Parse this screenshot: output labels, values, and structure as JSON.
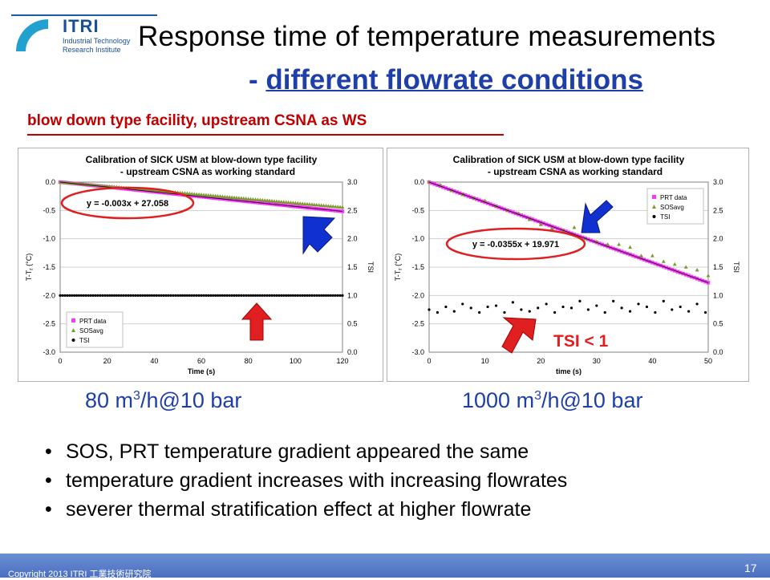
{
  "header": {
    "logo_text": "ITRI",
    "logo_sub1": "Industrial Technology",
    "logo_sub2": "Research Institute",
    "title_line1": "Response time of temperature measurements",
    "title_line2_prefix": "- ",
    "title_line2": "different flowrate conditions",
    "subtitle": "blow down type facility, upstream CSNA as WS"
  },
  "labels": {
    "flow1_pre": "80 m",
    "flow1_sup": "3",
    "flow1_post": "/h@10 bar",
    "flow2_pre": "1000 m",
    "flow2_sup": "3",
    "flow2_post": "/h@10 bar",
    "tsi_note": "TSI < 1"
  },
  "bullets": [
    "SOS, PRT  temperature gradient appeared the same",
    "temperature gradient increases with increasing flowrates",
    "severer thermal stratification effect at higher flowrate"
  ],
  "footer": {
    "copyright": "Copyright 2013 ITRI  工業技術研究院",
    "page": "17"
  },
  "colors": {
    "prt": "#ff33ff",
    "sos": "#7a9a2a",
    "tsi": "#000000",
    "trend": "#000000",
    "ellipse": "#e02020",
    "arrow_blue": "#1030d0",
    "arrow_red": "#e02020"
  },
  "chart_data": [
    {
      "type": "scatter",
      "title": "Calibration of SICK USM at blow-down type facility",
      "subtitle": "- upstream CSNA as working standard",
      "xlabel": "Time (s)",
      "ylabel": "T-T",
      "ylabel_sub": "r",
      "ylabel_unit": "(°C)",
      "y2label": "TSI",
      "xlim": [
        0,
        120
      ],
      "ylim": [
        -3.0,
        0.0
      ],
      "y2lim": [
        0.0,
        3.0
      ],
      "xticks": [
        "0",
        "20",
        "40",
        "60",
        "80",
        "100",
        "120"
      ],
      "yticks": [
        "0.0",
        "-0.5",
        "-1.0",
        "-1.5",
        "-2.0",
        "-2.5",
        "-3.0"
      ],
      "y2ticks": [
        "3.0",
        "2.5",
        "2.0",
        "1.5",
        "1.0",
        "0.5",
        "0.0"
      ],
      "equation": "y = -0.003x + 27.058",
      "legend_position": "bottom-left",
      "legend": [
        "PRT data",
        "SOSavg",
        "TSI"
      ],
      "series": [
        {
          "name": "PRT data",
          "marker": "square",
          "slope": -0.0043,
          "intercept": 0.0,
          "x_from": 0,
          "x_to": 120,
          "step": 1
        },
        {
          "name": "SOSavg",
          "marker": "triangle",
          "slope": -0.0037,
          "intercept": 0.0,
          "x_from": 0,
          "x_to": 120,
          "step": 1
        },
        {
          "name": "TSI",
          "marker": "circle",
          "axis": "y2",
          "constant": 1.0,
          "x_from": 0,
          "x_to": 120,
          "step": 1
        }
      ]
    },
    {
      "type": "scatter",
      "title": "Calibration of SICK USM at blow-down type facility",
      "subtitle": "- upstream CSNA as working standard",
      "xlabel": "time (s)",
      "ylabel": "T-T",
      "ylabel_sub": "r",
      "ylabel_unit": "(°C)",
      "y2label": "TSI",
      "xlim": [
        0,
        50
      ],
      "ylim": [
        -3.0,
        0.0
      ],
      "y2lim": [
        0.0,
        3.0
      ],
      "xticks": [
        "0",
        "10",
        "20",
        "30",
        "40",
        "50"
      ],
      "yticks": [
        "0.0",
        "-0.5",
        "-1.0",
        "-1.5",
        "-2.0",
        "-2.5",
        "-3.0"
      ],
      "y2ticks": [
        "3.0",
        "2.5",
        "2.0",
        "1.5",
        "1.0",
        "0.5",
        "0.0"
      ],
      "equation": "y = -0.0355x + 19.971",
      "legend_position": "top-right",
      "legend": [
        "PRT data",
        "SOSavg",
        "TSI"
      ],
      "series": [
        {
          "name": "PRT data",
          "marker": "square",
          "slope": -0.0355,
          "intercept": 0.0,
          "x_from": 0,
          "x_to": 50,
          "step": 0.5
        },
        {
          "name": "SOSavg",
          "marker": "triangle",
          "x": [
            0,
            2,
            4,
            6,
            8,
            10,
            12,
            14,
            16,
            18,
            20,
            22,
            24,
            26,
            28,
            30,
            32,
            34,
            36,
            38,
            40,
            42,
            44,
            46,
            48,
            50
          ],
          "values": [
            0.0,
            -0.05,
            -0.15,
            -0.22,
            -0.28,
            -0.33,
            -0.42,
            -0.5,
            -0.55,
            -0.66,
            -0.75,
            -0.82,
            -0.85,
            -0.8,
            -1.0,
            -1.05,
            -1.1,
            -1.1,
            -1.15,
            -1.3,
            -1.3,
            -1.4,
            -1.45,
            -1.5,
            -1.55,
            -1.65
          ]
        },
        {
          "name": "TSI",
          "marker": "circle",
          "axis": "y2",
          "x": [
            0,
            1.5,
            3,
            4.5,
            6,
            7.5,
            9,
            10.5,
            12,
            13.5,
            15,
            16.5,
            18,
            19.5,
            21,
            22.5,
            24,
            25.5,
            27,
            28.5,
            30,
            31.5,
            33,
            34.5,
            36,
            37.5,
            39,
            40.5,
            42,
            43.5,
            45,
            46.5,
            48,
            49.5
          ],
          "values": [
            0.75,
            0.7,
            0.8,
            0.72,
            0.85,
            0.78,
            0.7,
            0.8,
            0.82,
            0.7,
            0.88,
            0.75,
            0.72,
            0.78,
            0.85,
            0.7,
            0.8,
            0.78,
            0.9,
            0.75,
            0.82,
            0.7,
            0.9,
            0.78,
            0.72,
            0.85,
            0.8,
            0.7,
            0.9,
            0.75,
            0.8,
            0.72,
            0.85,
            0.7
          ]
        }
      ]
    }
  ]
}
